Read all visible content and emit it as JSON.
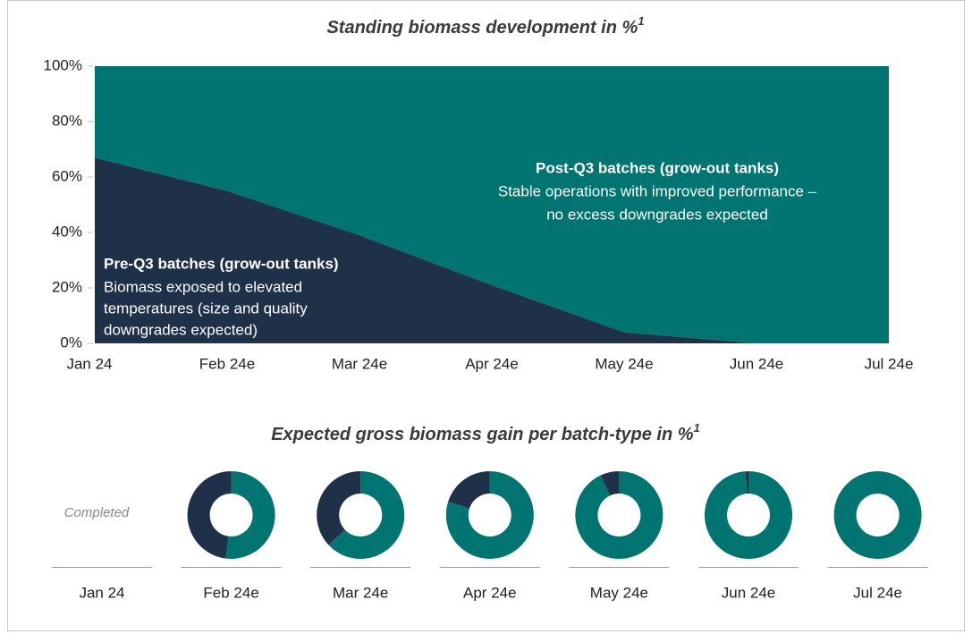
{
  "chart_data": [
    {
      "type": "area",
      "title": "Standing biomass development in %",
      "title_note": "1",
      "categories": [
        "Jan 24",
        "Feb 24e",
        "Mar 24e",
        "Apr 24e",
        "May 24e",
        "Jun 24e",
        "Jul 24e"
      ],
      "stacked": true,
      "series": [
        {
          "name": "Pre-Q3 batches (grow-out tanks)",
          "color": "#1f3049",
          "annotation": [
            "Biomass exposed to elevated",
            "temperatures (size and quality",
            "downgrades expected)"
          ],
          "values": [
            67,
            55,
            39,
            21,
            4,
            0,
            0
          ]
        },
        {
          "name": "Post-Q3 batches (grow-out tanks)",
          "color": "#007470",
          "annotation": [
            "Stable operations with improved performance –",
            "no excess downgrades expected"
          ],
          "values": [
            33,
            45,
            61,
            79,
            96,
            100,
            100
          ]
        }
      ],
      "ylim": [
        0,
        100
      ],
      "yticks": [
        {
          "value": 0,
          "label": "0%"
        },
        {
          "value": 20,
          "label": "20%"
        },
        {
          "value": 40,
          "label": "40%"
        },
        {
          "value": 60,
          "label": "60%"
        },
        {
          "value": 80,
          "label": "80%"
        },
        {
          "value": 100,
          "label": "100%"
        }
      ]
    },
    {
      "type": "donut",
      "title": "Expected gross biomass gain per batch-type in %",
      "title_note": "1",
      "categories": [
        "Jan 24",
        "Feb 24e",
        "Mar 24e",
        "Apr 24e",
        "May 24e",
        "Jun 24e",
        "Jul 24e"
      ],
      "completed_label": "Completed",
      "series": [
        {
          "name": "Post-Q3 batches",
          "color": "#007470",
          "values": [
            null,
            52,
            63,
            80,
            93,
            99,
            100
          ]
        },
        {
          "name": "Pre-Q3 batches",
          "color": "#1f3049",
          "values": [
            null,
            48,
            37,
            20,
            7,
            1,
            0
          ]
        }
      ]
    }
  ]
}
